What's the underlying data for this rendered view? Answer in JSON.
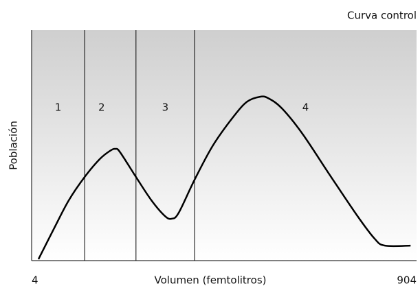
{
  "chart_data": {
    "type": "line",
    "title": "Curva control",
    "xlabel": "Volumen (femtolitros)",
    "ylabel": "Población",
    "x": [
      20,
      59,
      91,
      128,
      163,
      187,
      200,
      211,
      248,
      284,
      316,
      332,
      348,
      385,
      428,
      476,
      508,
      538,
      557,
      589,
      637,
      701,
      766,
      806,
      830,
      890
    ],
    "values": [
      0.6,
      14.9,
      26.2,
      36.3,
      44,
      47.6,
      48.5,
      47,
      36.3,
      26.2,
      19.3,
      18.2,
      20.8,
      35.1,
      50,
      62.5,
      69,
      71.1,
      70.5,
      66.1,
      55.1,
      37.2,
      19.3,
      9.5,
      6.5,
      6.5
    ],
    "color": "#000000",
    "xlim": [
      4,
      904
    ],
    "xticks": [
      4,
      904
    ],
    "ylim": [
      0,
      100
    ],
    "region_boundaries": [
      128,
      248,
      385
    ],
    "region_labels": [
      "1",
      "2",
      "3",
      "4"
    ]
  }
}
